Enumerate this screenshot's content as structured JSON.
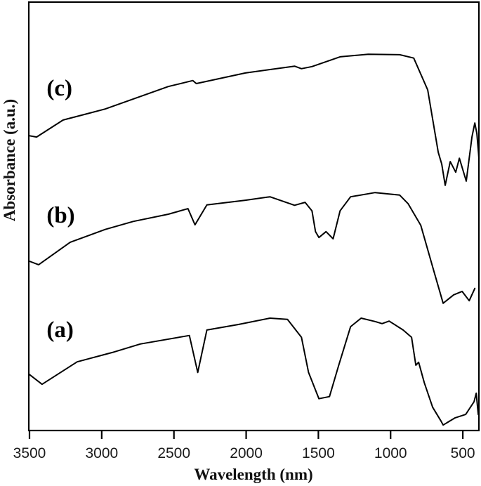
{
  "chart_data": {
    "type": "line",
    "title": "",
    "xlabel": "Wavelength (nm)",
    "ylabel": "Absorbance (a.u.)",
    "xlim": [
      3500,
      384
    ],
    "x_reversed": true,
    "ylim": [
      0,
      1
    ],
    "grid": false,
    "legend": "inline labels (a), (b), (c) at left of each offset curve",
    "x_ticks": [
      3500,
      3000,
      2500,
      2000,
      1500,
      1000,
      500
    ],
    "x_tick_labels": [
      "3500",
      "3000",
      "2500",
      "2000",
      "1500",
      "1000",
      "500"
    ],
    "y_ticks": [],
    "note": "Stacked/offset spectra; y values are arbitrary units estimated from pixel position (0 = bottom axis, 1 = top of frame).",
    "series": [
      {
        "name": "(a)",
        "label_pos_nm": 3440,
        "label_pos_au": 0.21,
        "x": [
          3500,
          3413,
          3170,
          2927,
          2733,
          2393,
          2335,
          2272,
          2053,
          1835,
          1714,
          1617,
          1568,
          1496,
          1423,
          1359,
          1277,
          1204,
          1107,
          1059,
          1010,
          913,
          855,
          825,
          806,
          767,
          709,
          650,
          636,
          553,
          480,
          422,
          407,
          393
        ],
        "values": [
          0.122,
          0.099,
          0.152,
          0.174,
          0.194,
          0.214,
          0.127,
          0.227,
          0.24,
          0.255,
          0.252,
          0.21,
          0.127,
          0.065,
          0.07,
          0.144,
          0.235,
          0.255,
          0.247,
          0.242,
          0.248,
          0.227,
          0.21,
          0.144,
          0.151,
          0.103,
          0.045,
          0.012,
          0.003,
          0.02,
          0.028,
          0.058,
          0.078,
          0.028
        ]
      },
      {
        "name": "(b)",
        "label_pos_nm": 3440,
        "label_pos_au": 0.48,
        "x": [
          3500,
          3437,
          3218,
          2976,
          2782,
          2539,
          2403,
          2354,
          2272,
          2005,
          1835,
          1665,
          1592,
          1544,
          1520,
          1496,
          1447,
          1398,
          1350,
          1277,
          1107,
          937,
          879,
          791,
          709,
          636,
          563,
          505,
          456,
          417
        ],
        "values": [
          0.389,
          0.381,
          0.434,
          0.464,
          0.483,
          0.5,
          0.513,
          0.475,
          0.522,
          0.533,
          0.541,
          0.521,
          0.528,
          0.508,
          0.459,
          0.445,
          0.459,
          0.442,
          0.508,
          0.541,
          0.551,
          0.545,
          0.525,
          0.474,
          0.376,
          0.29,
          0.31,
          0.318,
          0.296,
          0.325
        ]
      },
      {
        "name": "(c)",
        "label_pos_nm": 3440,
        "label_pos_au": 0.78,
        "x": [
          3500,
          3451,
          3267,
          2976,
          2539,
          2369,
          2345,
          2005,
          1665,
          1617,
          1544,
          1350,
          1155,
          937,
          840,
          743,
          670,
          646,
          622,
          587,
          549,
          524,
          476,
          437,
          417,
          403,
          388
        ],
        "values": [
          0.685,
          0.682,
          0.722,
          0.748,
          0.801,
          0.815,
          0.808,
          0.833,
          0.849,
          0.843,
          0.848,
          0.871,
          0.877,
          0.876,
          0.868,
          0.793,
          0.646,
          0.618,
          0.568,
          0.624,
          0.599,
          0.632,
          0.578,
          0.682,
          0.715,
          0.69,
          0.632
        ]
      }
    ]
  },
  "axes": {
    "x_label": "Wavelength (nm)",
    "y_label": "Absorbance (a.u.)"
  }
}
